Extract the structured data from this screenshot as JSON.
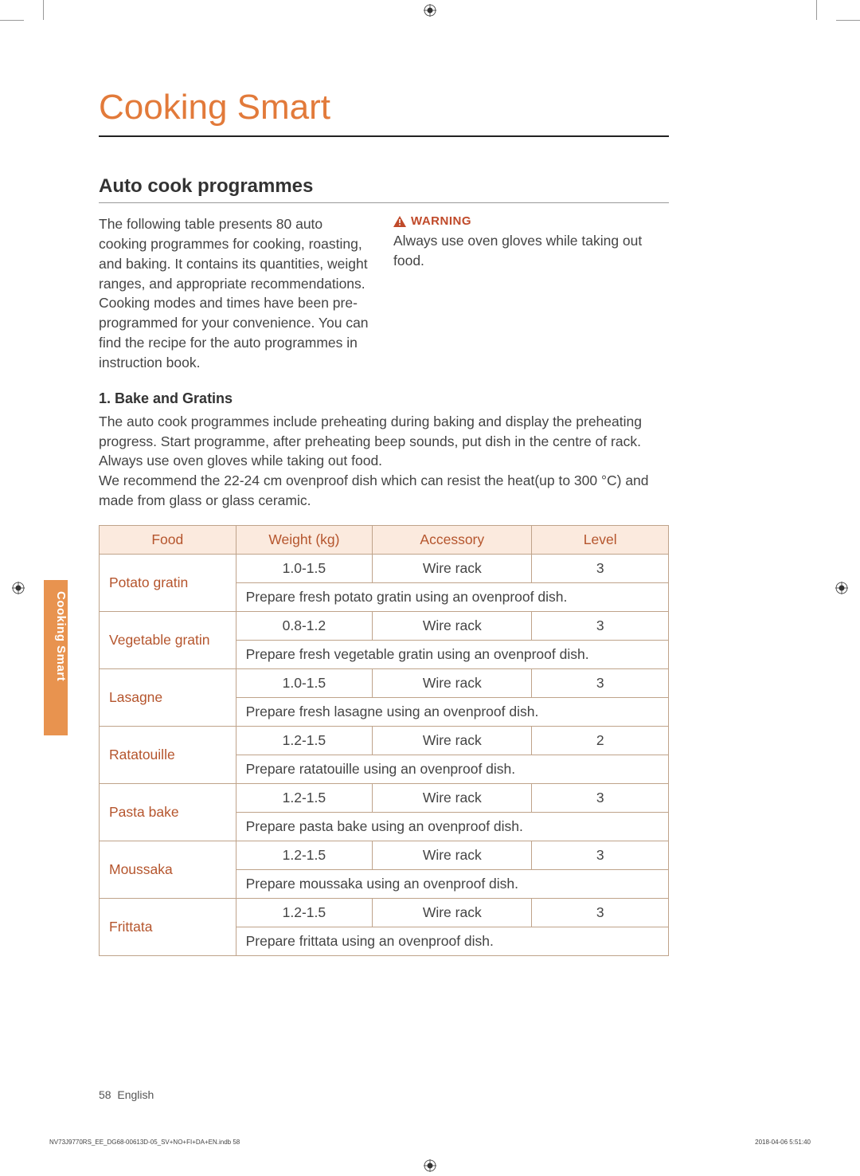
{
  "colors": {
    "accent": "#e27a3a",
    "accent_dark": "#b5552d",
    "header_bg": "#fbeade",
    "border": "#bfa38a",
    "tab_bg": "#e8934f",
    "text": "#444"
  },
  "title": "Cooking Smart",
  "section_title": "Auto cook programmes",
  "intro_text": "The following table presents 80 auto cooking programmes for cooking, roasting, and baking. It contains its quantities, weight ranges, and appropriate recommendations. Cooking modes and times have been pre-programmed for your convenience. You can find the recipe for the auto programmes in instruction book.",
  "warning": {
    "label": "WARNING",
    "text": "Always use oven gloves while taking out food."
  },
  "subsection": {
    "heading": "1. Bake and Gratins",
    "paragraph": "The auto cook programmes include preheating during baking and display the preheating progress. Start programme, after preheating beep sounds, put dish in the centre of rack. Always use oven gloves while taking out food.\nWe recommend the 22-24 cm ovenproof dish which can resist the heat(up to 300 °C) and made from glass or glass ceramic."
  },
  "table": {
    "columns": [
      "Food",
      "Weight (kg)",
      "Accessory",
      "Level"
    ],
    "col_widths_pct": [
      24,
      24,
      28,
      24
    ],
    "rows": [
      {
        "food": "Potato gratin",
        "weight": "1.0-1.5",
        "accessory": "Wire rack",
        "level": "3",
        "instruction": "Prepare fresh potato gratin using an ovenproof dish."
      },
      {
        "food": "Vegetable gratin",
        "weight": "0.8-1.2",
        "accessory": "Wire rack",
        "level": "3",
        "instruction": "Prepare fresh vegetable gratin using an ovenproof dish."
      },
      {
        "food": "Lasagne",
        "weight": "1.0-1.5",
        "accessory": "Wire rack",
        "level": "3",
        "instruction": "Prepare fresh lasagne using an ovenproof dish."
      },
      {
        "food": "Ratatouille",
        "weight": "1.2-1.5",
        "accessory": "Wire rack",
        "level": "2",
        "instruction": "Prepare ratatouille using an ovenproof dish."
      },
      {
        "food": "Pasta bake",
        "weight": "1.2-1.5",
        "accessory": "Wire rack",
        "level": "3",
        "instruction": "Prepare pasta bake using an ovenproof dish."
      },
      {
        "food": "Moussaka",
        "weight": "1.2-1.5",
        "accessory": "Wire rack",
        "level": "3",
        "instruction": "Prepare moussaka using an ovenproof dish."
      },
      {
        "food": "Frittata",
        "weight": "1.2-1.5",
        "accessory": "Wire rack",
        "level": "3",
        "instruction": "Prepare frittata using an ovenproof dish."
      }
    ]
  },
  "side_tab": "Cooking Smart",
  "footer": {
    "page_num": "58",
    "language": "English",
    "meta_left": "NV73J9770RS_EE_DG68-00613D-05_SV+NO+FI+DA+EN.indb   58",
    "meta_right": "2018-04-06   5:51:40"
  }
}
